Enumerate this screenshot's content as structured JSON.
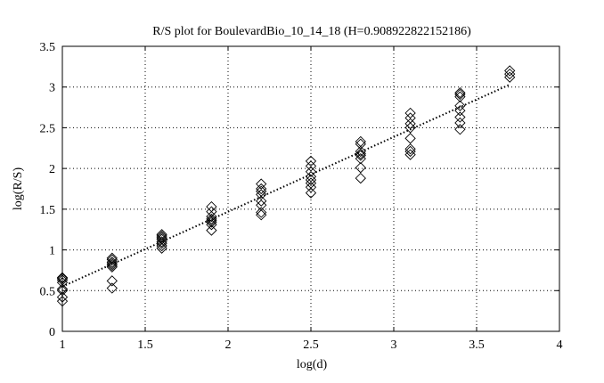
{
  "chart_data": {
    "type": "scatter",
    "title": "R/S plot for BoulevardBio_10_14_18 (H=0.908922822152186)",
    "xlabel": "log(d)",
    "ylabel": "log(R/S)",
    "xlim": [
      1,
      4
    ],
    "ylim": [
      0,
      3.5
    ],
    "xticks": [
      "1",
      "1.5",
      "2",
      "2.5",
      "3",
      "3.5",
      "4"
    ],
    "yticks": [
      "0",
      "0.5",
      "1",
      "1.5",
      "2",
      "2.5",
      "3",
      "3.5"
    ],
    "grid": true,
    "marker": "diamond",
    "series": [
      {
        "points": [
          [
            1.0,
            0.37
          ],
          [
            1.0,
            0.42
          ],
          [
            1.0,
            0.5
          ],
          [
            1.0,
            0.52
          ],
          [
            1.0,
            0.6
          ],
          [
            1.0,
            0.63
          ],
          [
            1.0,
            0.65
          ],
          [
            1.0,
            0.66
          ],
          [
            1.3,
            0.53
          ],
          [
            1.3,
            0.62
          ],
          [
            1.3,
            0.79
          ],
          [
            1.3,
            0.81
          ],
          [
            1.3,
            0.83
          ],
          [
            1.3,
            0.85
          ],
          [
            1.3,
            0.88
          ],
          [
            1.3,
            0.9
          ],
          [
            1.6,
            1.02
          ],
          [
            1.6,
            1.05
          ],
          [
            1.6,
            1.08
          ],
          [
            1.6,
            1.1
          ],
          [
            1.6,
            1.13
          ],
          [
            1.6,
            1.15
          ],
          [
            1.6,
            1.17
          ],
          [
            1.6,
            1.19
          ],
          [
            1.9,
            1.24
          ],
          [
            1.9,
            1.31
          ],
          [
            1.9,
            1.34
          ],
          [
            1.9,
            1.36
          ],
          [
            1.9,
            1.38
          ],
          [
            1.9,
            1.41
          ],
          [
            1.9,
            1.47
          ],
          [
            1.9,
            1.53
          ],
          [
            2.2,
            1.43
          ],
          [
            2.2,
            1.46
          ],
          [
            2.2,
            1.55
          ],
          [
            2.2,
            1.6
          ],
          [
            2.2,
            1.68
          ],
          [
            2.2,
            1.72
          ],
          [
            2.2,
            1.75
          ],
          [
            2.2,
            1.81
          ],
          [
            2.5,
            1.7
          ],
          [
            2.5,
            1.77
          ],
          [
            2.5,
            1.82
          ],
          [
            2.5,
            1.86
          ],
          [
            2.5,
            1.9
          ],
          [
            2.5,
            1.96
          ],
          [
            2.5,
            2.03
          ],
          [
            2.5,
            2.09
          ],
          [
            2.8,
            1.88
          ],
          [
            2.8,
            2.01
          ],
          [
            2.8,
            2.12
          ],
          [
            2.8,
            2.16
          ],
          [
            2.8,
            2.18
          ],
          [
            2.8,
            2.21
          ],
          [
            2.8,
            2.3
          ],
          [
            2.8,
            2.33
          ],
          [
            3.1,
            2.17
          ],
          [
            3.1,
            2.21
          ],
          [
            3.1,
            2.24
          ],
          [
            3.1,
            2.37
          ],
          [
            3.1,
            2.5
          ],
          [
            3.1,
            2.55
          ],
          [
            3.1,
            2.62
          ],
          [
            3.1,
            2.68
          ],
          [
            3.4,
            2.48
          ],
          [
            3.4,
            2.56
          ],
          [
            3.4,
            2.63
          ],
          [
            3.4,
            2.71
          ],
          [
            3.4,
            2.77
          ],
          [
            3.4,
            2.88
          ],
          [
            3.4,
            2.91
          ],
          [
            3.4,
            2.93
          ],
          [
            3.7,
            3.12
          ],
          [
            3.7,
            3.16
          ],
          [
            3.7,
            3.2
          ]
        ]
      }
    ],
    "fit_line": {
      "x": [
        1.0,
        3.7
      ],
      "y": [
        0.55,
        3.03
      ],
      "style": "dotted"
    }
  }
}
